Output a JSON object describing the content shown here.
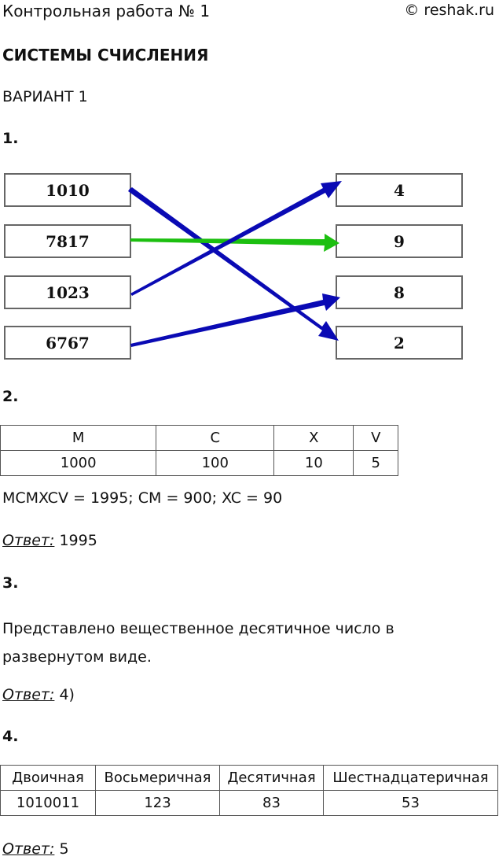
{
  "header": {
    "title": "Контрольная работа № 1",
    "copyright": "© reshak.ru"
  },
  "heading": "СИСТЕМЫ СЧИСЛЕНИЯ",
  "variant": "ВАРИАНТ 1",
  "task1": {
    "number": "1.",
    "left": [
      "1010",
      "7817",
      "1023",
      "6767"
    ],
    "right": [
      "4",
      "9",
      "8",
      "2"
    ],
    "arrow_colors": {
      "blue": "#0a0ab4",
      "green": "#1cbf10"
    }
  },
  "task2": {
    "number": "2.",
    "headers": [
      "M",
      "C",
      "X",
      "V"
    ],
    "values": [
      "1000",
      "100",
      "10",
      "5"
    ],
    "note": "MCMXCV = 1995; CM = 900; XC = 90",
    "answer_label": "Ответ:",
    "answer": "1995"
  },
  "task3": {
    "number": "3.",
    "text": "Представлено вещественное десятичное число в развернутом виде.",
    "answer_label": "Ответ:",
    "answer": "4)"
  },
  "task4": {
    "number": "4.",
    "headers": [
      "Двоичная",
      "Восьмеричная",
      "Десятичная",
      "Шестнадцатеричная"
    ],
    "values": [
      "1010011",
      "123",
      "83",
      "53"
    ],
    "answer_label": "Ответ:",
    "answer": "5"
  }
}
